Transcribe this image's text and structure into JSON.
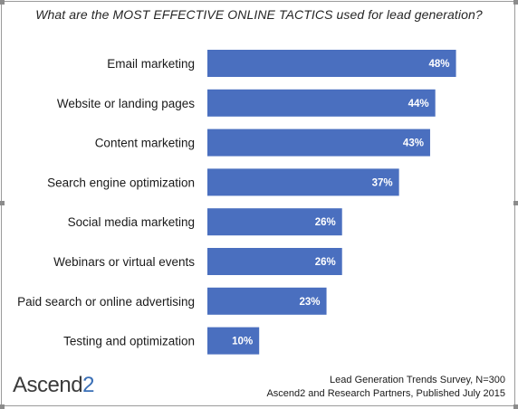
{
  "chart_data": {
    "type": "bar",
    "orientation": "horizontal",
    "title": "What are the MOST EFFECTIVE ONLINE TACTICS used for lead generation?",
    "categories": [
      "Email marketing",
      "Website or landing pages",
      "Content marketing",
      "Search engine optimization",
      "Social media marketing",
      "Webinars or virtual events",
      "Paid search or online advertising",
      "Testing and optimization"
    ],
    "values": [
      48,
      44,
      43,
      37,
      26,
      26,
      23,
      10
    ],
    "value_labels": [
      "48%",
      "44%",
      "43%",
      "37%",
      "26%",
      "26%",
      "23%",
      "10%"
    ],
    "unit": "%",
    "xlim": [
      0,
      50
    ],
    "grid": false,
    "bar_color": "#4a6fbf"
  },
  "footer": {
    "logo_main": "Ascend",
    "logo_tail": "2",
    "source_line1": "Lead Generation Trends Survey, N=300",
    "source_line2": "Ascend2 and Research Partners, Published July 2015"
  },
  "colors": {
    "bar": "#4a6fbf",
    "logo_accent": "#3a6fb6"
  }
}
